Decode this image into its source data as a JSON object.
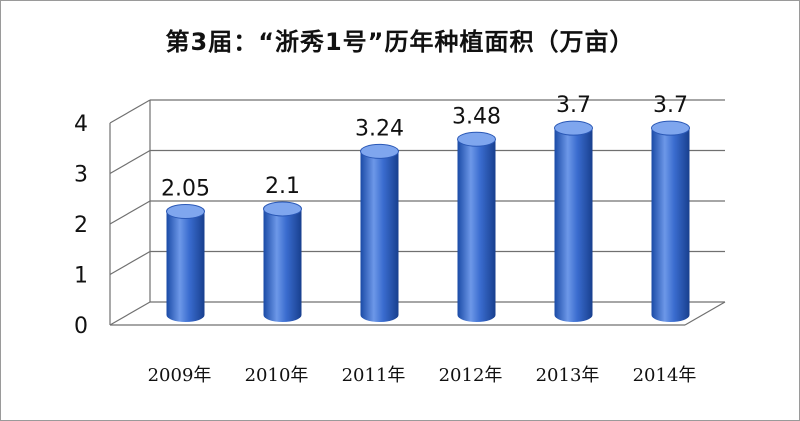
{
  "chart_data": {
    "type": "bar",
    "title": "第3届：“浙秀1号”历年种植面积（万亩）",
    "categories": [
      "2009年",
      "2010年",
      "2011年",
      "2012年",
      "2013年",
      "2014年"
    ],
    "values": [
      2.05,
      2.1,
      3.24,
      3.48,
      3.7,
      3.7
    ],
    "value_labels": [
      "2.05",
      "2.1",
      "3.24",
      "3.48",
      "3.7",
      "3.7"
    ],
    "y_ticks": [
      "0",
      "1",
      "2",
      "3",
      "4"
    ],
    "ylim": [
      0,
      4
    ],
    "style": "3d-cylinder",
    "grid": true,
    "legend": "none",
    "colors": {
      "bar": "#2f62c4",
      "bar_dark": "#163f8f",
      "bar_light": "#7fa6ee",
      "grid": "#707070"
    }
  }
}
